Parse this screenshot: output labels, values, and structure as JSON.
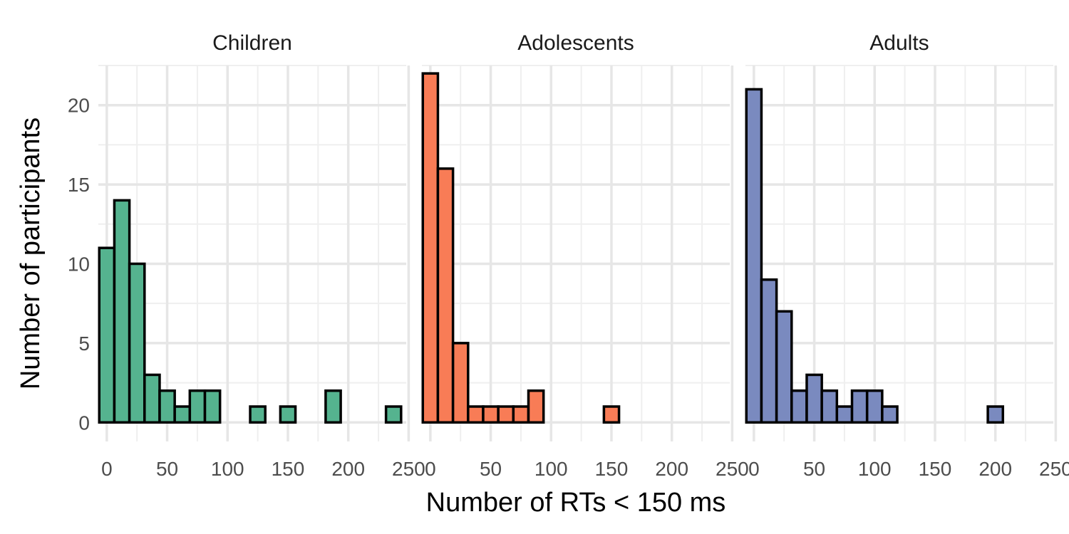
{
  "chart_data": {
    "type": "bar",
    "xlabel": "Number of RTs < 150 ms",
    "ylabel": "Number of participants",
    "binwidth": 12.5,
    "bin_centers": [
      0,
      12.5,
      25,
      37.5,
      50,
      62.5,
      75,
      87.5,
      100,
      112.5,
      125,
      137.5,
      150,
      162.5,
      175,
      187.5,
      200,
      212.5,
      225,
      237.5
    ],
    "xlim": [
      -7,
      248
    ],
    "ylim": [
      -1.2,
      22.5
    ],
    "x_ticks": [
      0,
      50,
      100,
      150,
      200,
      250
    ],
    "x_tick_labels": [
      "0",
      "50",
      "100",
      "150",
      "200",
      "250"
    ],
    "y_ticks": [
      0,
      5,
      10,
      15,
      20
    ],
    "y_tick_labels": [
      "0",
      "5",
      "10",
      "15",
      "20"
    ],
    "grid": true,
    "panels": [
      {
        "title": "Children",
        "color": "#55b38f",
        "counts": [
          11,
          14,
          10,
          3,
          2,
          1,
          2,
          2,
          0,
          0,
          1,
          0,
          1,
          0,
          0,
          2,
          0,
          0,
          0,
          1
        ]
      },
      {
        "title": "Adolescents",
        "color": "#f87c56",
        "counts": [
          22,
          16,
          5,
          1,
          1,
          1,
          1,
          2,
          0,
          0,
          0,
          0,
          1,
          0,
          0,
          0,
          0,
          0,
          0,
          0
        ]
      },
      {
        "title": "Adults",
        "color": "#7a8abf",
        "counts": [
          21,
          9,
          7,
          2,
          3,
          2,
          1,
          2,
          2,
          1,
          0,
          0,
          0,
          0,
          0,
          0,
          1,
          0,
          0,
          0
        ]
      }
    ]
  }
}
